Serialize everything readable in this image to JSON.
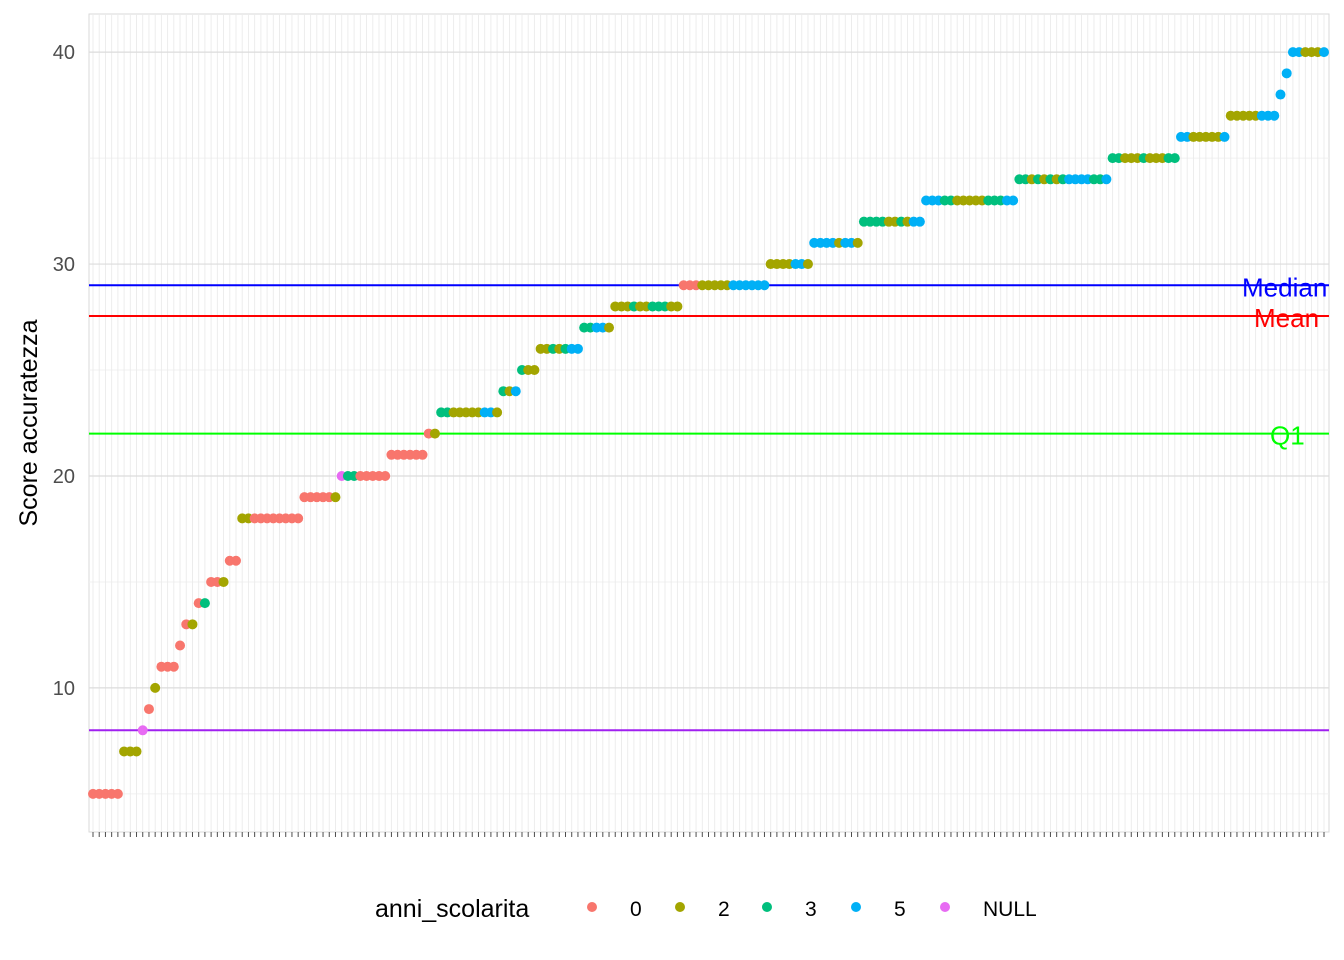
{
  "chart_data": {
    "type": "scatter",
    "title": "",
    "xlabel": "",
    "ylabel": "Score accuratezza",
    "ylim": [
      3.2,
      41.8
    ],
    "yticks": [
      10,
      20,
      30,
      40
    ],
    "x_tick_labels": "none",
    "grid": true,
    "legend_placement": "bottom",
    "legend": {
      "title": "anni_scolarita",
      "entries": [
        {
          "label": "0",
          "color": "#F8766D"
        },
        {
          "label": "2",
          "color": "#A3A500"
        },
        {
          "label": "3",
          "color": "#00BF7D"
        },
        {
          "label": "5",
          "color": "#00B0F6"
        },
        {
          "label": "NULL",
          "color": "#E76BF3"
        }
      ]
    },
    "reference_lines": [
      {
        "label": "Median",
        "y": 29.0,
        "color": "#0000FF"
      },
      {
        "label": "Mean",
        "y": 27.55,
        "color": "#FF0000"
      },
      {
        "label": "Q1",
        "y": 22.0,
        "color": "#00FF00"
      },
      {
        "label": "",
        "y": 8.0,
        "color": "#A020F0"
      }
    ],
    "points_note": "sorted respondents, x = rank index",
    "segments": [
      {
        "y": 5,
        "g": "0000"
      },
      {
        "y": 5,
        "g": "0"
      },
      {
        "y": 7,
        "g": "222"
      },
      {
        "y": 8,
        "g": "N"
      },
      {
        "y": 9,
        "g": "0"
      },
      {
        "y": 10,
        "g": "2"
      },
      {
        "y": 11,
        "g": "000"
      },
      {
        "y": 12,
        "g": "0"
      },
      {
        "y": 13,
        "g": "02"
      },
      {
        "y": 14,
        "g": "03"
      },
      {
        "y": 15,
        "g": "002"
      },
      {
        "y": 16,
        "g": "00"
      },
      {
        "y": 18,
        "g": "2200000000"
      },
      {
        "y": 19,
        "g": "000002"
      },
      {
        "y": 20,
        "g": "N3300000"
      },
      {
        "y": 21,
        "g": "000000"
      },
      {
        "y": 22,
        "g": "02"
      },
      {
        "y": 23,
        "g": "3322222552"
      },
      {
        "y": 24,
        "g": "325"
      },
      {
        "y": 25,
        "g": "322"
      },
      {
        "y": 26,
        "g": "2232355"
      },
      {
        "y": 27,
        "g": "33552"
      },
      {
        "y": 28,
        "g": "22232233322"
      },
      {
        "y": 29,
        "g": "00022222555555"
      },
      {
        "y": 30,
        "g": "2222552"
      },
      {
        "y": 31,
        "g": "55552552"
      },
      {
        "y": 32,
        "g": "3333223255"
      },
      {
        "y": 33,
        "g": "555332222233355"
      },
      {
        "y": 34,
        "g": "332323235555335"
      },
      {
        "y": 35,
        "g": "33222322233"
      },
      {
        "y": 36,
        "g": "55222225"
      },
      {
        "y": 37,
        "g": "22222555"
      },
      {
        "y": 38,
        "g": "5"
      },
      {
        "y": 39,
        "g": "5"
      },
      {
        "y": 40,
        "g": "552225"
      }
    ]
  }
}
